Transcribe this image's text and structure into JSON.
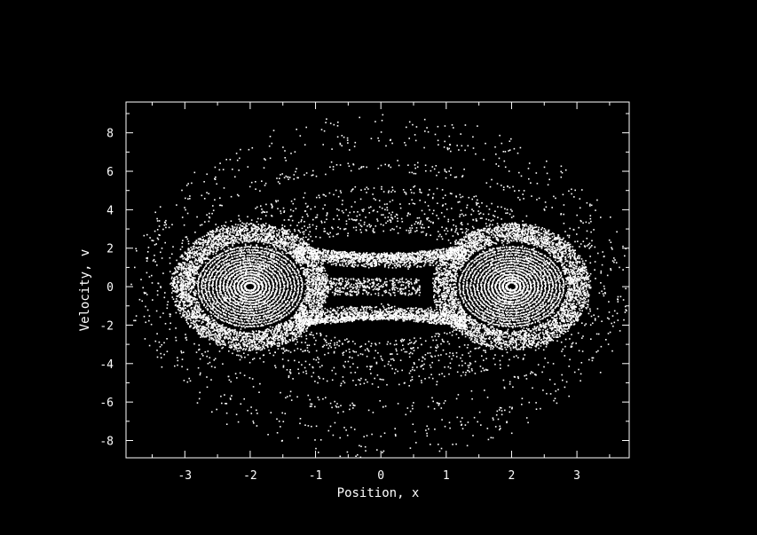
{
  "colors": {
    "background": "#000000",
    "foreground": "#ffffff"
  },
  "chart_data": {
    "type": "scatter",
    "title": "",
    "xlabel": "Position, x",
    "ylabel": "Velocity, v",
    "xlim": [
      -3.9,
      3.8
    ],
    "ylim": [
      -8.9,
      9.6
    ],
    "grid": false,
    "legend": "none",
    "xticks": [
      -3,
      -2,
      -1,
      0,
      1,
      2,
      3
    ],
    "yticks": [
      -8,
      -6,
      -4,
      -2,
      0,
      2,
      4,
      6,
      8
    ],
    "xtick_labels": [
      "-3",
      "-2",
      "-1",
      "0",
      "1",
      "2",
      "3"
    ],
    "ytick_labels": [
      "-8",
      "-6",
      "-4",
      "-2",
      "0",
      "2",
      "4",
      "6",
      "8"
    ],
    "series": [
      {
        "description": "Poincare-section point cloud of a double-well oscillator: dense cores around (-2, 0) and (2, 0), diffuse outer rings reaching v ≈ ±9",
        "points": [
          [
            -1.95,
            0.1
          ],
          [
            -1.98,
            0.0
          ],
          [
            -2.0,
            -0.15
          ],
          [
            -1.92,
            0.25
          ],
          [
            -2.05,
            0.2
          ],
          [
            1.95,
            -0.1
          ],
          [
            1.98,
            0.0
          ],
          [
            2.0,
            0.15
          ],
          [
            1.92,
            -0.25
          ],
          [
            2.05,
            -0.2
          ],
          [
            -2.3,
            0.8
          ],
          [
            -1.6,
            -0.9
          ],
          [
            2.3,
            -0.8
          ],
          [
            1.6,
            0.9
          ],
          [
            -2.6,
            1.6
          ],
          [
            -1.3,
            -1.5
          ],
          [
            2.6,
            -1.6
          ],
          [
            1.3,
            1.5
          ],
          [
            -3.0,
            2.5
          ],
          [
            -0.9,
            -2.7
          ],
          [
            3.0,
            -2.5
          ],
          [
            0.9,
            2.7
          ],
          [
            -3.2,
            3.8
          ],
          [
            0.0,
            -5.0
          ],
          [
            3.2,
            -3.8
          ],
          [
            0.0,
            5.0
          ],
          [
            -3.5,
            5.5
          ],
          [
            -0.5,
            -7.0
          ],
          [
            3.5,
            -5.5
          ],
          [
            0.5,
            7.0
          ],
          [
            -3.2,
            8.3
          ],
          [
            -2.0,
            -9.0
          ],
          [
            3.0,
            -8.0
          ],
          [
            2.5,
            7.4
          ]
        ]
      }
    ]
  }
}
